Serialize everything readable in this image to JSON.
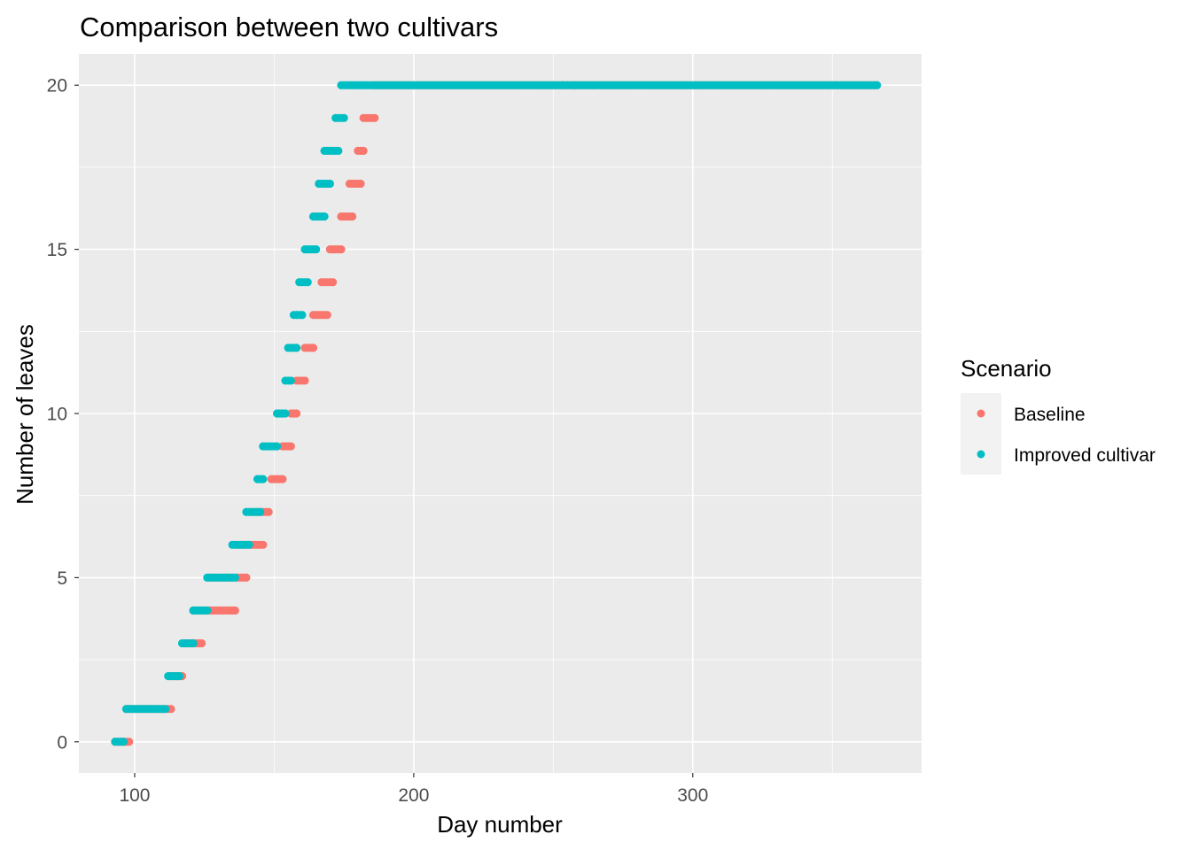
{
  "chart_data": {
    "type": "scatter",
    "title": "Comparison between two cultivars",
    "xlabel": "Day number",
    "ylabel": "Number of leaves",
    "xlim": [
      80,
      382
    ],
    "ylim": [
      -0.95,
      20.95
    ],
    "xticks": [
      100,
      200,
      300
    ],
    "yticks": [
      0,
      5,
      10,
      15,
      20
    ],
    "grid": true,
    "legend": {
      "title": "Scenario",
      "position": "right",
      "items": [
        {
          "label": "Baseline",
          "color": "#F8766D"
        },
        {
          "label": "Improved cultivar",
          "color": "#00BFC4"
        }
      ]
    },
    "series": [
      {
        "name": "Baseline",
        "color": "#F8766D",
        "ranges": [
          {
            "y": 0,
            "x_start": 93,
            "x_end": 98
          },
          {
            "y": 1,
            "x_start": 97,
            "x_end": 113
          },
          {
            "y": 2,
            "x_start": 113,
            "x_end": 117
          },
          {
            "y": 3,
            "x_start": 118,
            "x_end": 124
          },
          {
            "y": 4,
            "x_start": 121,
            "x_end": 136
          },
          {
            "y": 5,
            "x_start": 127,
            "x_end": 140
          },
          {
            "y": 6,
            "x_start": 137,
            "x_end": 146
          },
          {
            "y": 7,
            "x_start": 143,
            "x_end": 148
          },
          {
            "y": 8,
            "x_start": 149,
            "x_end": 153
          },
          {
            "y": 9,
            "x_start": 153,
            "x_end": 156
          },
          {
            "y": 10,
            "x_start": 156,
            "x_end": 158
          },
          {
            "y": 11,
            "x_start": 158,
            "x_end": 161
          },
          {
            "y": 12,
            "x_start": 161,
            "x_end": 164
          },
          {
            "y": 13,
            "x_start": 164,
            "x_end": 169
          },
          {
            "y": 14,
            "x_start": 167,
            "x_end": 171
          },
          {
            "y": 15,
            "x_start": 170,
            "x_end": 174
          },
          {
            "y": 16,
            "x_start": 174,
            "x_end": 178
          },
          {
            "y": 17,
            "x_start": 177,
            "x_end": 181
          },
          {
            "y": 18,
            "x_start": 180,
            "x_end": 182
          },
          {
            "y": 19,
            "x_start": 182,
            "x_end": 186
          },
          {
            "y": 20,
            "x_start": 186,
            "x_end": 366
          }
        ]
      },
      {
        "name": "Improved cultivar",
        "color": "#00BFC4",
        "ranges": [
          {
            "y": 0,
            "x_start": 93,
            "x_end": 96
          },
          {
            "y": 1,
            "x_start": 97,
            "x_end": 111
          },
          {
            "y": 2,
            "x_start": 112,
            "x_end": 116
          },
          {
            "y": 3,
            "x_start": 117,
            "x_end": 121
          },
          {
            "y": 4,
            "x_start": 121,
            "x_end": 126
          },
          {
            "y": 5,
            "x_start": 126,
            "x_end": 136
          },
          {
            "y": 6,
            "x_start": 135,
            "x_end": 141
          },
          {
            "y": 7,
            "x_start": 140,
            "x_end": 145
          },
          {
            "y": 8,
            "x_start": 144,
            "x_end": 146
          },
          {
            "y": 9,
            "x_start": 146,
            "x_end": 151
          },
          {
            "y": 10,
            "x_start": 151,
            "x_end": 154
          },
          {
            "y": 11,
            "x_start": 154,
            "x_end": 156
          },
          {
            "y": 12,
            "x_start": 155,
            "x_end": 158
          },
          {
            "y": 13,
            "x_start": 157,
            "x_end": 160
          },
          {
            "y": 14,
            "x_start": 159,
            "x_end": 162
          },
          {
            "y": 15,
            "x_start": 161,
            "x_end": 165
          },
          {
            "y": 16,
            "x_start": 164,
            "x_end": 168
          },
          {
            "y": 17,
            "x_start": 166,
            "x_end": 170
          },
          {
            "y": 18,
            "x_start": 168,
            "x_end": 173
          },
          {
            "y": 19,
            "x_start": 172,
            "x_end": 175
          },
          {
            "y": 20,
            "x_start": 174,
            "x_end": 366
          }
        ]
      }
    ]
  }
}
